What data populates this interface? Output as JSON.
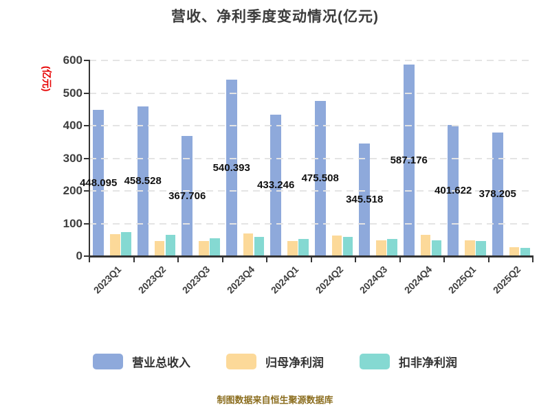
{
  "title": "营收、净利季度变动情况(亿元)",
  "y_axis": {
    "unit_label": "(亿元)",
    "unit_color": "#e60000"
  },
  "chart_data": {
    "type": "bar",
    "title": "营收、净利季度变动情况(亿元)",
    "categories": [
      "2023Q1",
      "2023Q2",
      "2023Q3",
      "2023Q4",
      "2024Q1",
      "2024Q2",
      "2024Q3",
      "2024Q4",
      "2025Q1",
      "2025Q2"
    ],
    "series": [
      {
        "name": "营业总收入",
        "color": "#8EA9DB",
        "values": [
          448.095,
          458.528,
          367.706,
          540.393,
          433.246,
          475.508,
          345.518,
          587.176,
          401.622,
          378.205
        ],
        "data_labels": true
      },
      {
        "name": "归母净利润",
        "color": "#FCD999",
        "values": [
          68,
          46,
          47,
          69,
          47,
          64,
          48,
          65,
          48,
          28
        ],
        "data_labels": false
      },
      {
        "name": "扣非净利润",
        "color": "#85D9D2",
        "values": [
          74,
          65,
          54,
          58,
          53,
          58,
          52,
          48,
          46,
          26
        ],
        "data_labels": false
      }
    ],
    "ylim": [
      0,
      600
    ],
    "yticks": [
      0,
      100,
      200,
      300,
      400,
      500,
      600
    ],
    "ylabel": "(亿元)",
    "grid": "horizontal-dashed",
    "legend_position": "bottom"
  },
  "legend": {
    "items": [
      {
        "label": "营业总收入",
        "color": "#8EA9DB"
      },
      {
        "label": "归母净利润",
        "color": "#FCD999"
      },
      {
        "label": "扣非净利润",
        "color": "#85D9D2"
      }
    ]
  },
  "caption": {
    "text": "制图数据来自恒生聚源数据库",
    "color": "#8B6D1E"
  }
}
